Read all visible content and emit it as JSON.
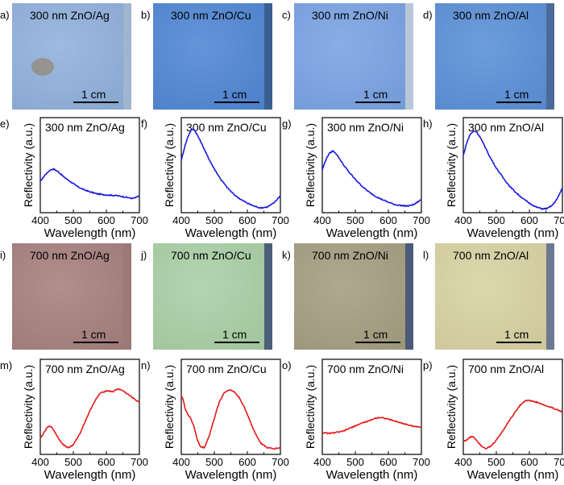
{
  "figure": {
    "scale_bar_label": "1 cm",
    "photo_rows": [
      {
        "panels": [
          {
            "letter": "a)",
            "title": "300 nm ZnO/Ag",
            "color": "#8fb0dc",
            "edge": "#9fb6cf"
          },
          {
            "letter": "b)",
            "title": "300 nm ZnO/Cu",
            "color": "#4f86d4",
            "edge": "#3b5f8f"
          },
          {
            "letter": "c)",
            "title": "300 nm ZnO/Ni",
            "color": "#79a2e3",
            "edge": "#b9c7da"
          },
          {
            "letter": "d)",
            "title": "300 nm ZnO/Al",
            "color": "#5a8fd8",
            "edge": "#4a6b99"
          }
        ]
      },
      {
        "panels": [
          {
            "letter": "i)",
            "title": "700 nm ZnO/Ag",
            "color": "#a67f7d",
            "edge": "#9a7977"
          },
          {
            "letter": "j)",
            "title": "700 nm ZnO/Cu",
            "color": "#a9cfa5",
            "edge": "#4b5f78"
          },
          {
            "letter": "k)",
            "title": "700 nm ZnO/Ni",
            "color": "#a49d80",
            "edge": "#4b5a78"
          },
          {
            "letter": "l)",
            "title": "700 nm ZnO/Al",
            "color": "#d8d2a2",
            "edge": "#6d7891"
          }
        ]
      }
    ]
  },
  "chart_data": [
    {
      "letter": "e)",
      "type": "line",
      "title": "300 nm ZnO/Ag",
      "xlabel": "Wavelength (nm)",
      "ylabel": "Reflectivity (a.u.)",
      "xlim": [
        400,
        700
      ],
      "ylim": [
        0,
        1
      ],
      "xticks": [
        "400",
        "500",
        "600",
        "700"
      ],
      "color": "#1a1adc",
      "x": [
        400,
        415,
        430,
        440,
        455,
        470,
        490,
        510,
        530,
        550,
        570,
        590,
        610,
        630,
        650,
        670,
        680,
        690,
        700
      ],
      "y": [
        0.33,
        0.4,
        0.45,
        0.46,
        0.43,
        0.38,
        0.33,
        0.28,
        0.245,
        0.22,
        0.2,
        0.19,
        0.185,
        0.18,
        0.17,
        0.155,
        0.15,
        0.16,
        0.18
      ]
    },
    {
      "letter": "f)",
      "type": "line",
      "title": "300 nm ZnO/Cu",
      "xlabel": "Wavelength (nm)",
      "ylabel": "Reflectivity (a.u.)",
      "xlim": [
        400,
        700
      ],
      "ylim": [
        0,
        1
      ],
      "xticks": [
        "400",
        "500",
        "600",
        "700"
      ],
      "color": "#1a1adc",
      "x": [
        400,
        410,
        420,
        430,
        438,
        445,
        460,
        480,
        500,
        520,
        540,
        560,
        580,
        600,
        620,
        640,
        660,
        680,
        700
      ],
      "y": [
        0.55,
        0.69,
        0.8,
        0.87,
        0.88,
        0.84,
        0.74,
        0.59,
        0.46,
        0.35,
        0.26,
        0.19,
        0.14,
        0.1,
        0.07,
        0.05,
        0.06,
        0.1,
        0.18
      ]
    },
    {
      "letter": "g)",
      "type": "line",
      "title": "300 nm ZnO/Ni",
      "xlabel": "Wavelength (nm)",
      "ylabel": "Reflectivity (a.u.)",
      "xlim": [
        400,
        700
      ],
      "ylim": [
        0,
        1
      ],
      "xticks": [
        "400",
        "500",
        "600",
        "700"
      ],
      "color": "#1a1adc",
      "x": [
        400,
        410,
        420,
        432,
        440,
        450,
        465,
        480,
        500,
        520,
        540,
        560,
        580,
        600,
        620,
        640,
        660,
        680,
        700
      ],
      "y": [
        0.45,
        0.55,
        0.62,
        0.65,
        0.63,
        0.58,
        0.5,
        0.43,
        0.35,
        0.28,
        0.22,
        0.175,
        0.14,
        0.11,
        0.085,
        0.075,
        0.07,
        0.09,
        0.14
      ]
    },
    {
      "letter": "h)",
      "type": "line",
      "title": "300 nm ZnO/Al",
      "xlabel": "Wavelength (nm)",
      "ylabel": "Reflectivity (a.u.)",
      "xlim": [
        400,
        700
      ],
      "ylim": [
        0,
        1
      ],
      "xticks": [
        "400",
        "500",
        "600",
        "700"
      ],
      "color": "#1a1adc",
      "x": [
        400,
        410,
        420,
        432,
        440,
        450,
        465,
        480,
        500,
        520,
        540,
        560,
        580,
        600,
        620,
        640,
        655,
        670,
        685,
        700
      ],
      "y": [
        0.6,
        0.73,
        0.82,
        0.86,
        0.85,
        0.8,
        0.7,
        0.59,
        0.47,
        0.37,
        0.28,
        0.21,
        0.15,
        0.1,
        0.06,
        0.04,
        0.045,
        0.08,
        0.15,
        0.26
      ]
    },
    {
      "letter": "m)",
      "type": "line",
      "title": "700 nm ZnO/Ag",
      "xlabel": "Wavelength (nm)",
      "ylabel": "Reflectivity (a.u.)",
      "xlim": [
        400,
        700
      ],
      "ylim": [
        0,
        1
      ],
      "xticks": [
        "400",
        "500",
        "600",
        "700"
      ],
      "color": "#e31a1a",
      "x": [
        400,
        410,
        420,
        430,
        440,
        455,
        470,
        485,
        500,
        520,
        540,
        560,
        580,
        600,
        620,
        635,
        650,
        670,
        690,
        700
      ],
      "y": [
        0.17,
        0.22,
        0.28,
        0.3,
        0.26,
        0.17,
        0.1,
        0.07,
        0.1,
        0.22,
        0.38,
        0.53,
        0.64,
        0.67,
        0.66,
        0.69,
        0.67,
        0.62,
        0.57,
        0.55
      ]
    },
    {
      "letter": "n)",
      "type": "line",
      "title": "700 nm ZnO/Cu",
      "xlabel": "Wavelength (nm)",
      "ylabel": "Reflectivity (a.u.)",
      "xlim": [
        400,
        700
      ],
      "ylim": [
        0,
        1
      ],
      "xticks": [
        "400",
        "500",
        "600",
        "700"
      ],
      "color": "#e31a1a",
      "x": [
        400,
        405,
        412,
        420,
        428,
        438,
        448,
        458,
        470,
        485,
        500,
        515,
        530,
        545,
        560,
        575,
        590,
        605,
        620,
        640,
        660,
        680,
        700
      ],
      "y": [
        0.62,
        0.58,
        0.48,
        0.42,
        0.38,
        0.3,
        0.16,
        0.08,
        0.07,
        0.2,
        0.38,
        0.55,
        0.65,
        0.68,
        0.66,
        0.6,
        0.5,
        0.38,
        0.25,
        0.12,
        0.07,
        0.06,
        0.07
      ]
    },
    {
      "letter": "o)",
      "type": "line",
      "title": "700 nm ZnO/Ni",
      "xlabel": "Wavelength (nm)",
      "ylabel": "Reflectivity (a.u.)",
      "xlim": [
        400,
        700
      ],
      "ylim": [
        0,
        1
      ],
      "xticks": [
        "400",
        "500",
        "600",
        "700"
      ],
      "color": "#e31a1a",
      "x": [
        400,
        420,
        440,
        460,
        480,
        500,
        520,
        540,
        560,
        575,
        590,
        610,
        630,
        650,
        670,
        690,
        700
      ],
      "y": [
        0.23,
        0.22,
        0.23,
        0.24,
        0.27,
        0.3,
        0.33,
        0.35,
        0.38,
        0.39,
        0.38,
        0.36,
        0.34,
        0.32,
        0.3,
        0.29,
        0.28
      ]
    },
    {
      "letter": "p)",
      "type": "line",
      "title": "700 nm ZnO/Al",
      "xlabel": "Wavelength (nm)",
      "ylabel": "Reflectivity (a.u.)",
      "xlim": [
        400,
        700
      ],
      "ylim": [
        0,
        1
      ],
      "xticks": [
        "400",
        "500",
        "600",
        "700"
      ],
      "color": "#e31a1a",
      "x": [
        400,
        410,
        420,
        430,
        440,
        455,
        470,
        485,
        500,
        520,
        540,
        560,
        575,
        590,
        610,
        630,
        650,
        670,
        690,
        700
      ],
      "y": [
        0.14,
        0.15,
        0.18,
        0.19,
        0.15,
        0.09,
        0.06,
        0.09,
        0.15,
        0.25,
        0.36,
        0.46,
        0.53,
        0.57,
        0.56,
        0.54,
        0.51,
        0.49,
        0.46,
        0.45
      ]
    }
  ]
}
